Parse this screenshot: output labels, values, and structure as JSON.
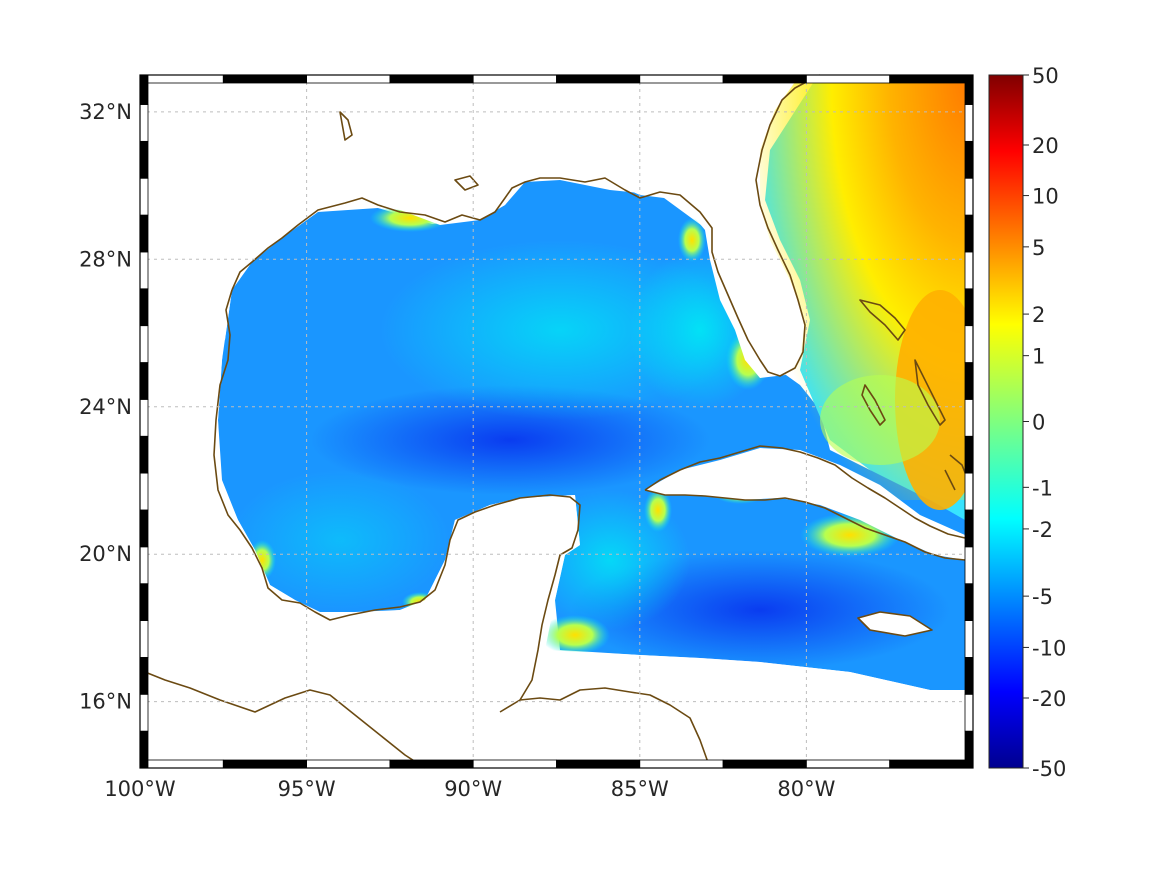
{
  "map": {
    "region": "Gulf of Mexico and Caribbean",
    "lon_range": [
      -100,
      -75
    ],
    "lat_range": [
      14.2,
      33
    ],
    "x_ticks": [
      {
        "lon": -100,
        "label": "100°W"
      },
      {
        "lon": -95,
        "label": "95°W"
      },
      {
        "lon": -90,
        "label": "90°W"
      },
      {
        "lon": -85,
        "label": "85°W"
      },
      {
        "lon": -80,
        "label": "80°W"
      }
    ],
    "y_ticks": [
      {
        "lat": 32,
        "label": "32°N"
      },
      {
        "lat": 28,
        "label": "28°N"
      },
      {
        "lat": 24,
        "label": "24°N"
      },
      {
        "lat": 20,
        "label": "20°N"
      },
      {
        "lat": 16,
        "label": "16°N"
      }
    ],
    "grid": true,
    "coastline_color": "#6b4a12",
    "land_color": "#ffffff"
  },
  "colorbar": {
    "colormap": "jet",
    "ticks": [
      "50",
      "20",
      "10",
      "5",
      "2",
      "1",
      "0",
      "-1",
      "-2",
      "-5",
      "-10",
      "-20",
      "-50"
    ]
  }
}
